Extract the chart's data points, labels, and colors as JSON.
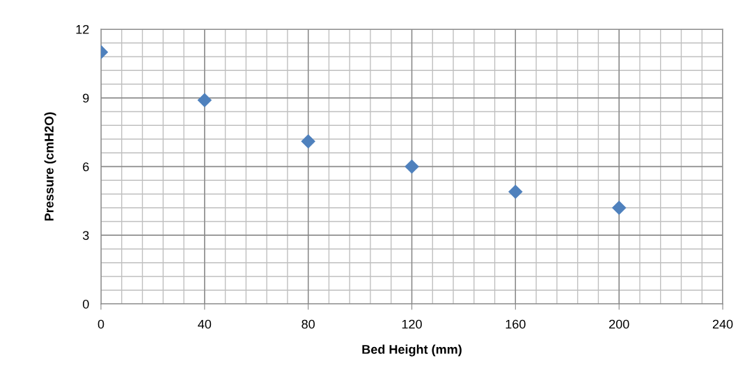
{
  "chart_data": {
    "type": "scatter",
    "xlabel": "Bed Height (mm)",
    "ylabel": "Pressure (cmH2O)",
    "x": [
      0,
      40,
      80,
      120,
      160,
      200
    ],
    "series": [
      {
        "color": "#4f81bd",
        "values": [
          11,
          8.9,
          7.1,
          6.0,
          4.9,
          4.2
        ]
      }
    ],
    "xlim": [
      0,
      240
    ],
    "xticks": [
      0,
      40,
      80,
      120,
      160,
      200,
      240
    ],
    "ylim": [
      0,
      12
    ],
    "yticks": [
      0,
      3,
      6,
      9,
      12
    ],
    "grid": true,
    "marker": "diamond"
  }
}
